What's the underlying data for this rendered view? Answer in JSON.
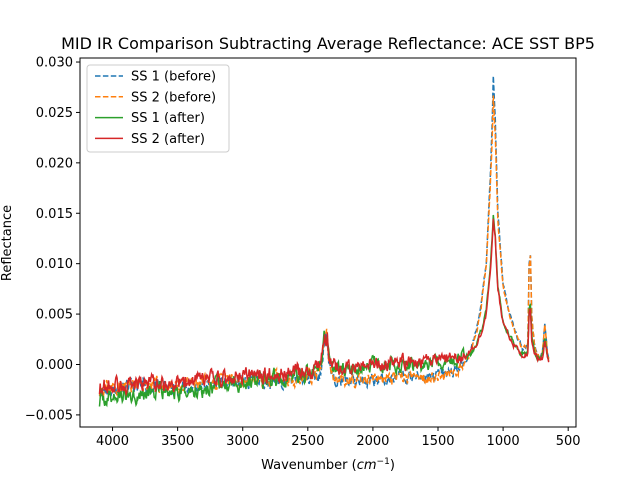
{
  "chart_data": {
    "type": "line",
    "title": "MID IR Comparison Subtracting Average Reflectance: ACE SST BP5",
    "xlabel": "Wavenumber (cm⁻¹)",
    "ylabel": "Reflectance",
    "xlim": [
      4250,
      440
    ],
    "ylim": [
      -0.0062,
      0.0304
    ],
    "x_reversed": true,
    "x_ticks": [
      4000,
      3500,
      3000,
      2500,
      2000,
      1500,
      1000,
      500
    ],
    "y_ticks": [
      -0.005,
      0.0,
      0.005,
      0.01,
      0.015,
      0.02,
      0.025,
      0.03
    ],
    "y_tick_labels": [
      "−0.005",
      "0.000",
      "0.005",
      "0.010",
      "0.015",
      "0.020",
      "0.025",
      "0.030"
    ],
    "legend": {
      "placement": "upper-left"
    },
    "grid": false,
    "anchors": [
      [
        4100,
        -0.0025
      ],
      [
        3900,
        -0.0022
      ],
      [
        3700,
        -0.002
      ],
      [
        3500,
        -0.0022
      ],
      [
        3300,
        -0.0018
      ],
      [
        3100,
        -0.0015
      ],
      [
        2900,
        -0.0013
      ],
      [
        2700,
        -0.0012
      ],
      [
        2550,
        -0.001
      ],
      [
        2450,
        -0.0008
      ],
      [
        2400,
        -0.0003
      ],
      [
        2370,
        0.003
      ],
      [
        2355,
        0.004
      ],
      [
        2340,
        0.001
      ],
      [
        2320,
        -0.0005
      ],
      [
        2250,
        -0.001
      ],
      [
        2100,
        -0.001
      ],
      [
        2000,
        -0.0008
      ],
      [
        1800,
        -0.0006
      ],
      [
        1600,
        -0.0005
      ],
      [
        1400,
        -0.0002
      ],
      [
        1300,
        0.0005
      ],
      [
        1250,
        0.0015
      ],
      [
        1200,
        0.004
      ],
      [
        1170,
        0.006
      ],
      [
        1130,
        0.01
      ],
      [
        1100,
        0.018
      ],
      [
        1085,
        0.023
      ],
      [
        1075,
        0.028
      ],
      [
        1060,
        0.024
      ],
      [
        1040,
        0.015
      ],
      [
        1000,
        0.008
      ],
      [
        950,
        0.005
      ],
      [
        900,
        0.003
      ],
      [
        850,
        0.0015
      ],
      [
        810,
        0.002
      ],
      [
        800,
        0.01
      ],
      [
        790,
        0.011
      ],
      [
        780,
        0.005
      ],
      [
        760,
        0.002
      ],
      [
        720,
        0.0005
      ],
      [
        700,
        0.001
      ],
      [
        680,
        0.004
      ],
      [
        670,
        0.003
      ],
      [
        660,
        0.001
      ],
      [
        650,
        0.0005
      ]
    ],
    "series": [
      {
        "name": "SS 1 (before)",
        "color": "#1f77b4",
        "style": "dashed",
        "peak": 0.0285,
        "scale": 1.0,
        "offsets": [
          [
            4200,
            0
          ],
          [
            2500,
            -0.0005
          ],
          [
            2000,
            -0.0008
          ],
          [
            1400,
            -0.0006
          ],
          [
            1100,
            0
          ],
          [
            400,
            0
          ]
        ],
        "seed": 11,
        "noise": 0.0005
      },
      {
        "name": "SS 2 (before)",
        "color": "#ff7f0e",
        "style": "dashed",
        "peak": 0.0265,
        "scale": 0.96,
        "offsets": [
          [
            4200,
            0.0002
          ],
          [
            2500,
            -0.0003
          ],
          [
            2000,
            -0.0007
          ],
          [
            1400,
            -0.0008
          ],
          [
            1100,
            0
          ],
          [
            400,
            0
          ]
        ],
        "seed": 23,
        "noise": 0.0005
      },
      {
        "name": "SS 1 (after)",
        "color": "#2ca02c",
        "style": "solid",
        "peak": 0.015,
        "scale": 0.52,
        "offsets": [
          [
            4200,
            -0.001
          ],
          [
            3400,
            -0.0006
          ],
          [
            2500,
            0
          ],
          [
            2000,
            0.0008
          ],
          [
            1400,
            0.0004
          ],
          [
            1100,
            0
          ],
          [
            400,
            0.0005
          ]
        ],
        "seed": 37,
        "noise": 0.0006
      },
      {
        "name": "SS 2 (after)",
        "color": "#d62728",
        "style": "solid",
        "peak": 0.0145,
        "scale": 0.5,
        "offsets": [
          [
            4200,
            0.0003
          ],
          [
            3400,
            0.0002
          ],
          [
            2500,
            0.0003
          ],
          [
            2000,
            0.0008
          ],
          [
            1400,
            0.0008
          ],
          [
            1100,
            0
          ],
          [
            400,
            0.0003
          ]
        ],
        "seed": 53,
        "noise": 0.0006
      }
    ]
  }
}
